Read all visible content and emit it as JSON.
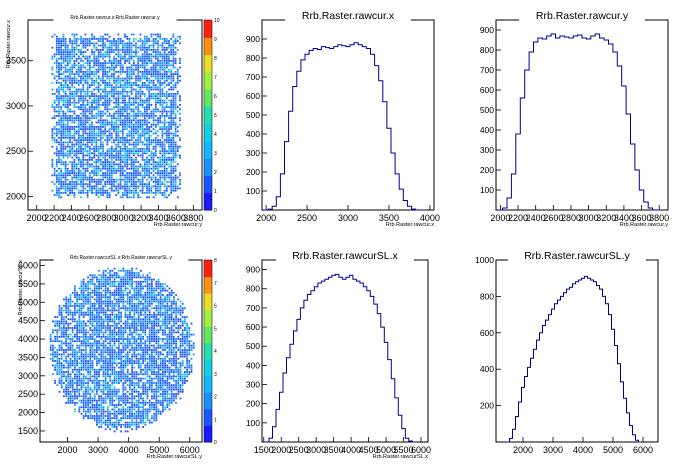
{
  "colors": {
    "hist_line": "#000099",
    "background": "#ffffff",
    "frame": "#000000"
  },
  "chart_data": [
    {
      "type": "heatmap",
      "title": "Rrb.Raster.rawcur.x:Rrb.Raster.rawcur.y",
      "xlabel": "Rrb.Raster.rawcur.y",
      "ylabel": "Rrb.Raster.rawcur.x",
      "xlim": [
        1900,
        3900
      ],
      "ylim": [
        1850,
        3950
      ],
      "x_ticks": [
        2000,
        2200,
        2400,
        2600,
        2800,
        3000,
        3200,
        3400,
        3600,
        3800
      ],
      "x_tick_labels": [
        "2000",
        "2200",
        "2400",
        "2600",
        "2800",
        "3000",
        "3200",
        "3400",
        "3600",
        "3800"
      ],
      "y_ticks": [
        2000,
        2500,
        3000,
        3500
      ],
      "y_tick_labels": [
        "2000",
        "2500",
        "3000",
        "3500"
      ],
      "z_range": [
        0,
        10
      ],
      "z_ticks": [
        0,
        1,
        2,
        3,
        4,
        5,
        6,
        7,
        8,
        9,
        10
      ],
      "z_tick_labels": [
        "0",
        "1",
        "2",
        "3",
        "4",
        "5",
        "6",
        "7",
        "8",
        "9",
        "10"
      ],
      "shape": "rectangle",
      "region": {
        "x_min": 2170,
        "x_max": 3650,
        "y_min": 2000,
        "y_max": 3800
      },
      "legend": "color scale right"
    },
    {
      "type": "bar",
      "title": "Rrb.Raster.rawcur.x",
      "xlabel": "Rrb.Raster.rawcur.x",
      "ylabel": "",
      "xlim": [
        1950,
        4050
      ],
      "ylim": [
        0,
        1000
      ],
      "x_ticks": [
        2000,
        2500,
        3000,
        3500,
        4000
      ],
      "x_tick_labels": [
        "2000",
        "2500",
        "3000",
        "3500",
        "4000"
      ],
      "y_ticks": [
        100,
        200,
        300,
        400,
        500,
        600,
        700,
        800,
        900
      ],
      "y_tick_labels": [
        "100",
        "200",
        "300",
        "400",
        "500",
        "600",
        "700",
        "800",
        "900"
      ],
      "x": [
        2000,
        2050,
        2100,
        2150,
        2200,
        2250,
        2300,
        2350,
        2400,
        2450,
        2500,
        2550,
        2600,
        2650,
        2700,
        2750,
        2800,
        2850,
        2900,
        2950,
        3000,
        3050,
        3100,
        3150,
        3200,
        3250,
        3300,
        3350,
        3400,
        3450,
        3500,
        3550,
        3600,
        3650,
        3700,
        3750,
        3800,
        3850,
        3900
      ],
      "values": [
        0,
        5,
        20,
        70,
        190,
        360,
        520,
        650,
        730,
        790,
        820,
        840,
        850,
        845,
        860,
        855,
        850,
        860,
        870,
        865,
        860,
        870,
        880,
        870,
        860,
        850,
        820,
        760,
        680,
        570,
        430,
        300,
        190,
        110,
        50,
        20,
        5,
        0,
        0
      ],
      "grid": false
    },
    {
      "type": "bar",
      "title": "Rrb.Raster.rawcur.y",
      "xlabel": "Rrb.Raster.rawcur.y",
      "ylabel": "",
      "xlim": [
        1950,
        3900
      ],
      "ylim": [
        0,
        950
      ],
      "x_ticks": [
        2000,
        2200,
        2400,
        2600,
        2800,
        3000,
        3200,
        3400,
        3600,
        3800
      ],
      "x_tick_labels": [
        "2000",
        "2200",
        "2400",
        "2600",
        "2800",
        "3000",
        "3200",
        "3400",
        "3600",
        "3800"
      ],
      "y_ticks": [
        100,
        200,
        300,
        400,
        500,
        600,
        700,
        800,
        900
      ],
      "y_tick_labels": [
        "100",
        "200",
        "300",
        "400",
        "500",
        "600",
        "700",
        "800",
        "900"
      ],
      "x": [
        2000,
        2050,
        2100,
        2150,
        2200,
        2250,
        2300,
        2350,
        2400,
        2450,
        2500,
        2550,
        2600,
        2650,
        2700,
        2750,
        2800,
        2850,
        2900,
        2950,
        3000,
        3050,
        3100,
        3150,
        3200,
        3250,
        3300,
        3350,
        3400,
        3450,
        3500,
        3550,
        3600,
        3650,
        3700,
        3750,
        3800
      ],
      "values": [
        0,
        10,
        60,
        180,
        380,
        560,
        700,
        790,
        840,
        860,
        855,
        870,
        880,
        860,
        870,
        865,
        860,
        870,
        875,
        860,
        855,
        870,
        880,
        860,
        850,
        830,
        790,
        720,
        620,
        480,
        330,
        200,
        100,
        40,
        10,
        0,
        0
      ],
      "grid": false
    },
    {
      "type": "heatmap",
      "title": "Rrb.Raster.rawcurSL.x:Rrb.Raster.rawcurSL.y",
      "xlabel": "Rrb.Raster.rawcurSL.y",
      "ylabel": "Rrb.Raster.rawcurSL.x",
      "xlim": [
        1100,
        6400
      ],
      "ylim": [
        1200,
        6150
      ],
      "x_ticks": [
        2000,
        3000,
        4000,
        5000,
        6000
      ],
      "x_tick_labels": [
        "2000",
        "3000",
        "4000",
        "5000",
        "6000"
      ],
      "y_ticks": [
        1500,
        2000,
        2500,
        3000,
        3500,
        4000,
        4500,
        5000,
        5500,
        6000
      ],
      "y_tick_labels": [
        "1500",
        "2000",
        "2500",
        "3000",
        "3500",
        "4000",
        "4500",
        "5000",
        "5500",
        "6000"
      ],
      "z_range": [
        0,
        8
      ],
      "z_ticks": [
        0,
        1,
        2,
        3,
        4,
        5,
        6,
        7,
        8
      ],
      "z_tick_labels": [
        "0",
        "1",
        "2",
        "3",
        "4",
        "5",
        "6",
        "7",
        "8"
      ],
      "shape": "circle",
      "region": {
        "cx": 3750,
        "cy": 3750,
        "rx": 2400,
        "ry": 2250
      },
      "legend": "color scale right"
    },
    {
      "type": "bar",
      "title": "Rrb.Raster.rawcurSL.x",
      "xlabel": "Rrb.Raster.rawcurSL.x",
      "ylabel": "",
      "xlim": [
        1450,
        6200
      ],
      "ylim": [
        0,
        950
      ],
      "x_ticks": [
        1500,
        2000,
        2500,
        3000,
        3500,
        4000,
        4500,
        5000,
        5500,
        6000
      ],
      "x_tick_labels": [
        "1500",
        "2000",
        "2500",
        "3000",
        "3500",
        "4000",
        "4500",
        "5000",
        "5500",
        "6000"
      ],
      "y_ticks": [
        100,
        200,
        300,
        400,
        500,
        600,
        700,
        800,
        900
      ],
      "y_tick_labels": [
        "100",
        "200",
        "300",
        "400",
        "500",
        "600",
        "700",
        "800",
        "900"
      ],
      "x": [
        1600,
        1700,
        1800,
        1900,
        2000,
        2100,
        2200,
        2300,
        2400,
        2500,
        2600,
        2700,
        2800,
        2900,
        3000,
        3100,
        3200,
        3300,
        3400,
        3500,
        3600,
        3700,
        3800,
        3900,
        4000,
        4100,
        4200,
        4300,
        4400,
        4500,
        4600,
        4700,
        4800,
        4900,
        5000,
        5100,
        5200,
        5300,
        5400,
        5500,
        5600,
        5700,
        5800
      ],
      "values": [
        0,
        20,
        80,
        170,
        260,
        360,
        440,
        510,
        580,
        640,
        700,
        740,
        770,
        790,
        810,
        830,
        840,
        850,
        860,
        870,
        875,
        860,
        850,
        860,
        870,
        850,
        840,
        830,
        810,
        790,
        760,
        720,
        670,
        600,
        520,
        430,
        330,
        230,
        140,
        70,
        20,
        5,
        0
      ],
      "grid": false
    },
    {
      "type": "bar",
      "title": "Rrb.Raster.rawcurSL.y",
      "xlabel": "",
      "ylabel": "",
      "xlim": [
        1100,
        6500
      ],
      "ylim": [
        0,
        1000
      ],
      "x_ticks": [
        2000,
        3000,
        4000,
        5000,
        6000
      ],
      "x_tick_labels": [
        "2000",
        "3000",
        "4000",
        "5000",
        "6000"
      ],
      "y_ticks": [
        200,
        400,
        600,
        800,
        1000
      ],
      "y_tick_labels": [
        "200",
        "400",
        "600",
        "800",
        "1000"
      ],
      "x": [
        1500,
        1600,
        1700,
        1800,
        1900,
        2000,
        2100,
        2200,
        2300,
        2400,
        2500,
        2600,
        2700,
        2800,
        2900,
        3000,
        3100,
        3200,
        3300,
        3400,
        3500,
        3600,
        3700,
        3800,
        3900,
        4000,
        4100,
        4200,
        4300,
        4400,
        4500,
        4600,
        4700,
        4800,
        4900,
        5000,
        5100,
        5200,
        5300,
        5400,
        5500,
        5600,
        5700,
        5800,
        5900
      ],
      "values": [
        0,
        20,
        70,
        140,
        220,
        300,
        360,
        410,
        460,
        510,
        560,
        600,
        640,
        670,
        700,
        730,
        760,
        780,
        800,
        820,
        840,
        850,
        870,
        880,
        890,
        900,
        910,
        900,
        890,
        880,
        860,
        840,
        800,
        760,
        700,
        620,
        530,
        430,
        330,
        240,
        160,
        90,
        40,
        10,
        0
      ],
      "grid": false
    }
  ]
}
